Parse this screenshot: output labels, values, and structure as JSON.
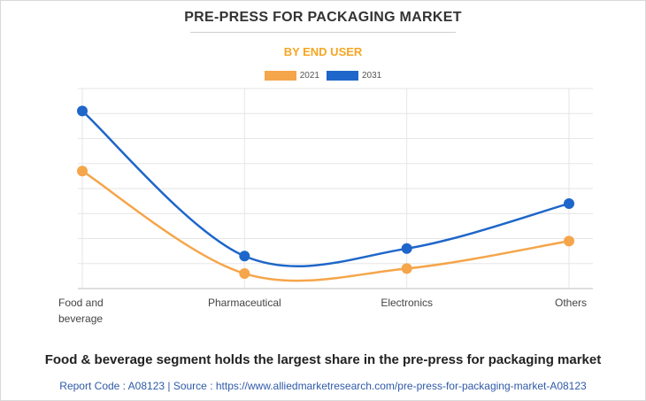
{
  "chart_data": {
    "type": "line",
    "title": "PRE-PRESS FOR PACKAGING MARKET",
    "subtitle": "BY END USER",
    "categories": [
      "Food and beverage",
      "Pharmaceutical",
      "Electronics",
      "Others"
    ],
    "category_lines": [
      [
        "Food and",
        "beverage"
      ],
      [
        "Pharmaceutical"
      ],
      [
        "Electronics"
      ],
      [
        "Others"
      ]
    ],
    "series": [
      {
        "name": "2021",
        "color": "#f5a54a",
        "values": [
          47,
          6,
          8,
          19
        ]
      },
      {
        "name": "2031",
        "color": "#1e66c9",
        "values": [
          71,
          13,
          16,
          34
        ]
      }
    ],
    "ylim": [
      0,
      80
    ],
    "grid": true,
    "legend_position": "top-center"
  },
  "caption": "Food & beverage segment holds the largest share in the pre-press for packaging market",
  "footer": "Report Code : A08123  |  Source : https://www.alliedmarketresearch.com/pre-press-for-packaging-market-A08123"
}
